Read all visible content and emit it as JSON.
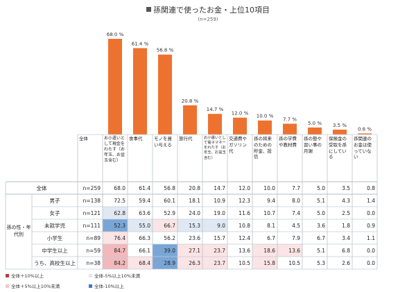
{
  "title": "孫関連で使ったお金・上位10項目",
  "subtitle": "(n=259)",
  "colors": {
    "bar": "#ed7230",
    "plus10": "#f2b8bb",
    "plus5": "#fbe4e5",
    "minus5": "#e0e9f3",
    "minus10": "#7aa6d6",
    "legend_plus10": "#c0393f",
    "legend_plus5": "#f4c6c8",
    "legend_minus5": "#dfe8f2",
    "legend_minus10": "#3f78c2"
  },
  "chart_data": {
    "type": "bar",
    "categories": [
      "お小遣いとして現金をわたす（お年玉、お盆玉含む）",
      "食事代",
      "モノを買い与える",
      "旅行代",
      "お小遣いとして電子マネーをわたす（お年玉、お盆玉含む）",
      "交通費やガソリン代",
      "孫の将来のための貯金、投信",
      "孫の学費や教材費",
      "孫の塾や習い事の月謝",
      "保険金の受取を孫にしている",
      "孫関連のお金は使っていない"
    ],
    "values": [
      68.0,
      61.4,
      56.8,
      20.8,
      14.7,
      12.0,
      10.0,
      7.7,
      5.0,
      3.5,
      0.8
    ],
    "value_labels": [
      "68.0 %",
      "61.4 %",
      "56.8 %",
      "20.8 %",
      "14.7 %",
      "12.0 %",
      "10.0 %",
      "7.7 %",
      "5.0 %",
      "3.5 %",
      "0.8 %"
    ],
    "ylim": [
      0,
      70
    ]
  },
  "table": {
    "corner": "全体",
    "headers": [
      "お小遣いとして現金をわたす（お年玉、お盆玉含む）",
      "食事代",
      "モノを買い与える",
      "旅行代",
      "お小遣いとして電子マネーをわたす（お年玉、お盆玉含む）",
      "交通費やガソリン代",
      "孫の将来のための貯金、投信",
      "孫の学費や教材費",
      "孫の塾や習い事の月謝",
      "保険金の受取を孫にしている",
      "孫関連のお金は使っていない"
    ],
    "group_label": "孫の性・年代別",
    "rows": [
      {
        "label": "全体",
        "n": "n=259",
        "values": [
          "68.0",
          "61.4",
          "56.8",
          "20.8",
          "14.7",
          "12.0",
          "10.0",
          "7.7",
          "5.0",
          "3.5",
          "0.8"
        ],
        "hl": [
          "",
          "",
          "",
          "",
          "",
          "",
          "",
          "",
          "",
          "",
          ""
        ]
      },
      {
        "label": "男子",
        "n": "n=138",
        "values": [
          "72.5",
          "59.4",
          "60.1",
          "18.1",
          "10.9",
          "12.3",
          "9.4",
          "8.0",
          "5.1",
          "4.3",
          "1.4"
        ],
        "hl": [
          "",
          "",
          "",
          "",
          "",
          "",
          "",
          "",
          "",
          "",
          ""
        ]
      },
      {
        "label": "女子",
        "n": "n=121",
        "values": [
          "62.8",
          "63.6",
          "52.9",
          "24.0",
          "19.0",
          "11.6",
          "10.7",
          "7.4",
          "5.0",
          "2.5",
          "0.0"
        ],
        "hl": [
          "m5",
          "",
          "",
          "",
          "",
          "",
          "",
          "",
          "",
          "",
          ""
        ]
      },
      {
        "label": "未就学児",
        "n": "n=111",
        "values": [
          "52.3",
          "55.0",
          "66.7",
          "15.3",
          "9.0",
          "10.8",
          "8.1",
          "4.5",
          "3.6",
          "1.8",
          "0.9"
        ],
        "hl": [
          "m10",
          "m5",
          "p5",
          "m5",
          "m5",
          "",
          "",
          "",
          "",
          "",
          ""
        ]
      },
      {
        "label": "小学生",
        "n": "n=89",
        "values": [
          "76.4",
          "66.3",
          "56.2",
          "23.6",
          "15.7",
          "12.4",
          "6.7",
          "7.9",
          "6.7",
          "3.4",
          "1.1"
        ],
        "hl": [
          "p5",
          "",
          "",
          "",
          "",
          "",
          "",
          "",
          "",
          "",
          ""
        ]
      },
      {
        "label": "中学生以上",
        "n": "n=59",
        "values": [
          "84.7",
          "66.1",
          "39.0",
          "27.1",
          "23.7",
          "13.6",
          "18.6",
          "13.6",
          "5.1",
          "6.8",
          "0.0"
        ],
        "hl": [
          "p10",
          "",
          "m10",
          "p5",
          "p5",
          "",
          "p5",
          "p5",
          "",
          "",
          ""
        ]
      },
      {
        "label": "うち、高校生以上",
        "n": "n=38",
        "values": [
          "84.2",
          "68.4",
          "28.9",
          "26.3",
          "23.7",
          "10.5",
          "15.8",
          "10.5",
          "5.3",
          "2.6",
          "0.0"
        ],
        "hl": [
          "p10",
          "p5",
          "m10",
          "p5",
          "p5",
          "",
          "p5",
          "",
          "",
          "",
          ""
        ]
      }
    ]
  },
  "legend": [
    {
      "key": "legend_plus10",
      "label": "全体＋10%以上"
    },
    {
      "key": "legend_minus5",
      "label": "全体-5%以上10%未満"
    },
    {
      "key": "legend_plus5",
      "label": "全体＋5%以上10%未満"
    },
    {
      "key": "legend_minus10",
      "label": "全体-10%以上"
    }
  ]
}
